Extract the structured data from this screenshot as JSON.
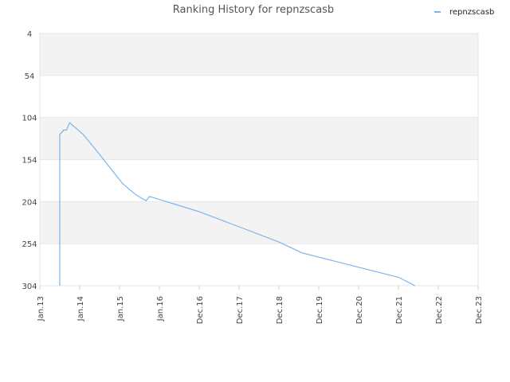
{
  "chart_data": {
    "type": "line",
    "title": "Ranking History for repnzscasb",
    "xlabel": "",
    "ylabel": "",
    "x_ticks": [
      "Jan.13",
      "Jan.14",
      "Jan.15",
      "Jan.16",
      "Dec.16",
      "Dec.17",
      "Dec.18",
      "Dec.19",
      "Dec.20",
      "Dec.21",
      "Dec.22",
      "Dec.23"
    ],
    "y_ticks": [
      "4",
      "54",
      "104",
      "154",
      "204",
      "254",
      "304"
    ],
    "ylim": [
      4,
      304
    ],
    "y_inverted": true,
    "grid": true,
    "legend": "top-right",
    "series": [
      {
        "name": "repnzscasb",
        "color": "#7cb5ec",
        "x": [
          "Jul.13",
          "Jul.13",
          "Jul.13",
          "Jul.13",
          "Jul.13",
          "Aug.13",
          "Aug.13",
          "Sep.13",
          "Oct.13",
          "Oct.13",
          "Nov.13",
          "Dec.13",
          "Feb.14",
          "Jun.14",
          "Oct.14",
          "Feb.15",
          "Jun.15",
          "Sep.15",
          "Oct.15",
          "Nov.15",
          "Dec.16",
          "Dec.17",
          "Dec.18",
          "Jul.19",
          "Dec.20",
          "Dec.21",
          "May.22"
        ],
        "values": [
          304,
          216,
          214,
          140,
          124,
          120,
          119,
          119,
          110,
          110,
          114,
          117,
          124,
          143,
          163,
          183,
          196,
          203,
          198,
          199,
          216,
          234,
          252,
          265,
          282,
          294,
          304
        ]
      }
    ]
  }
}
